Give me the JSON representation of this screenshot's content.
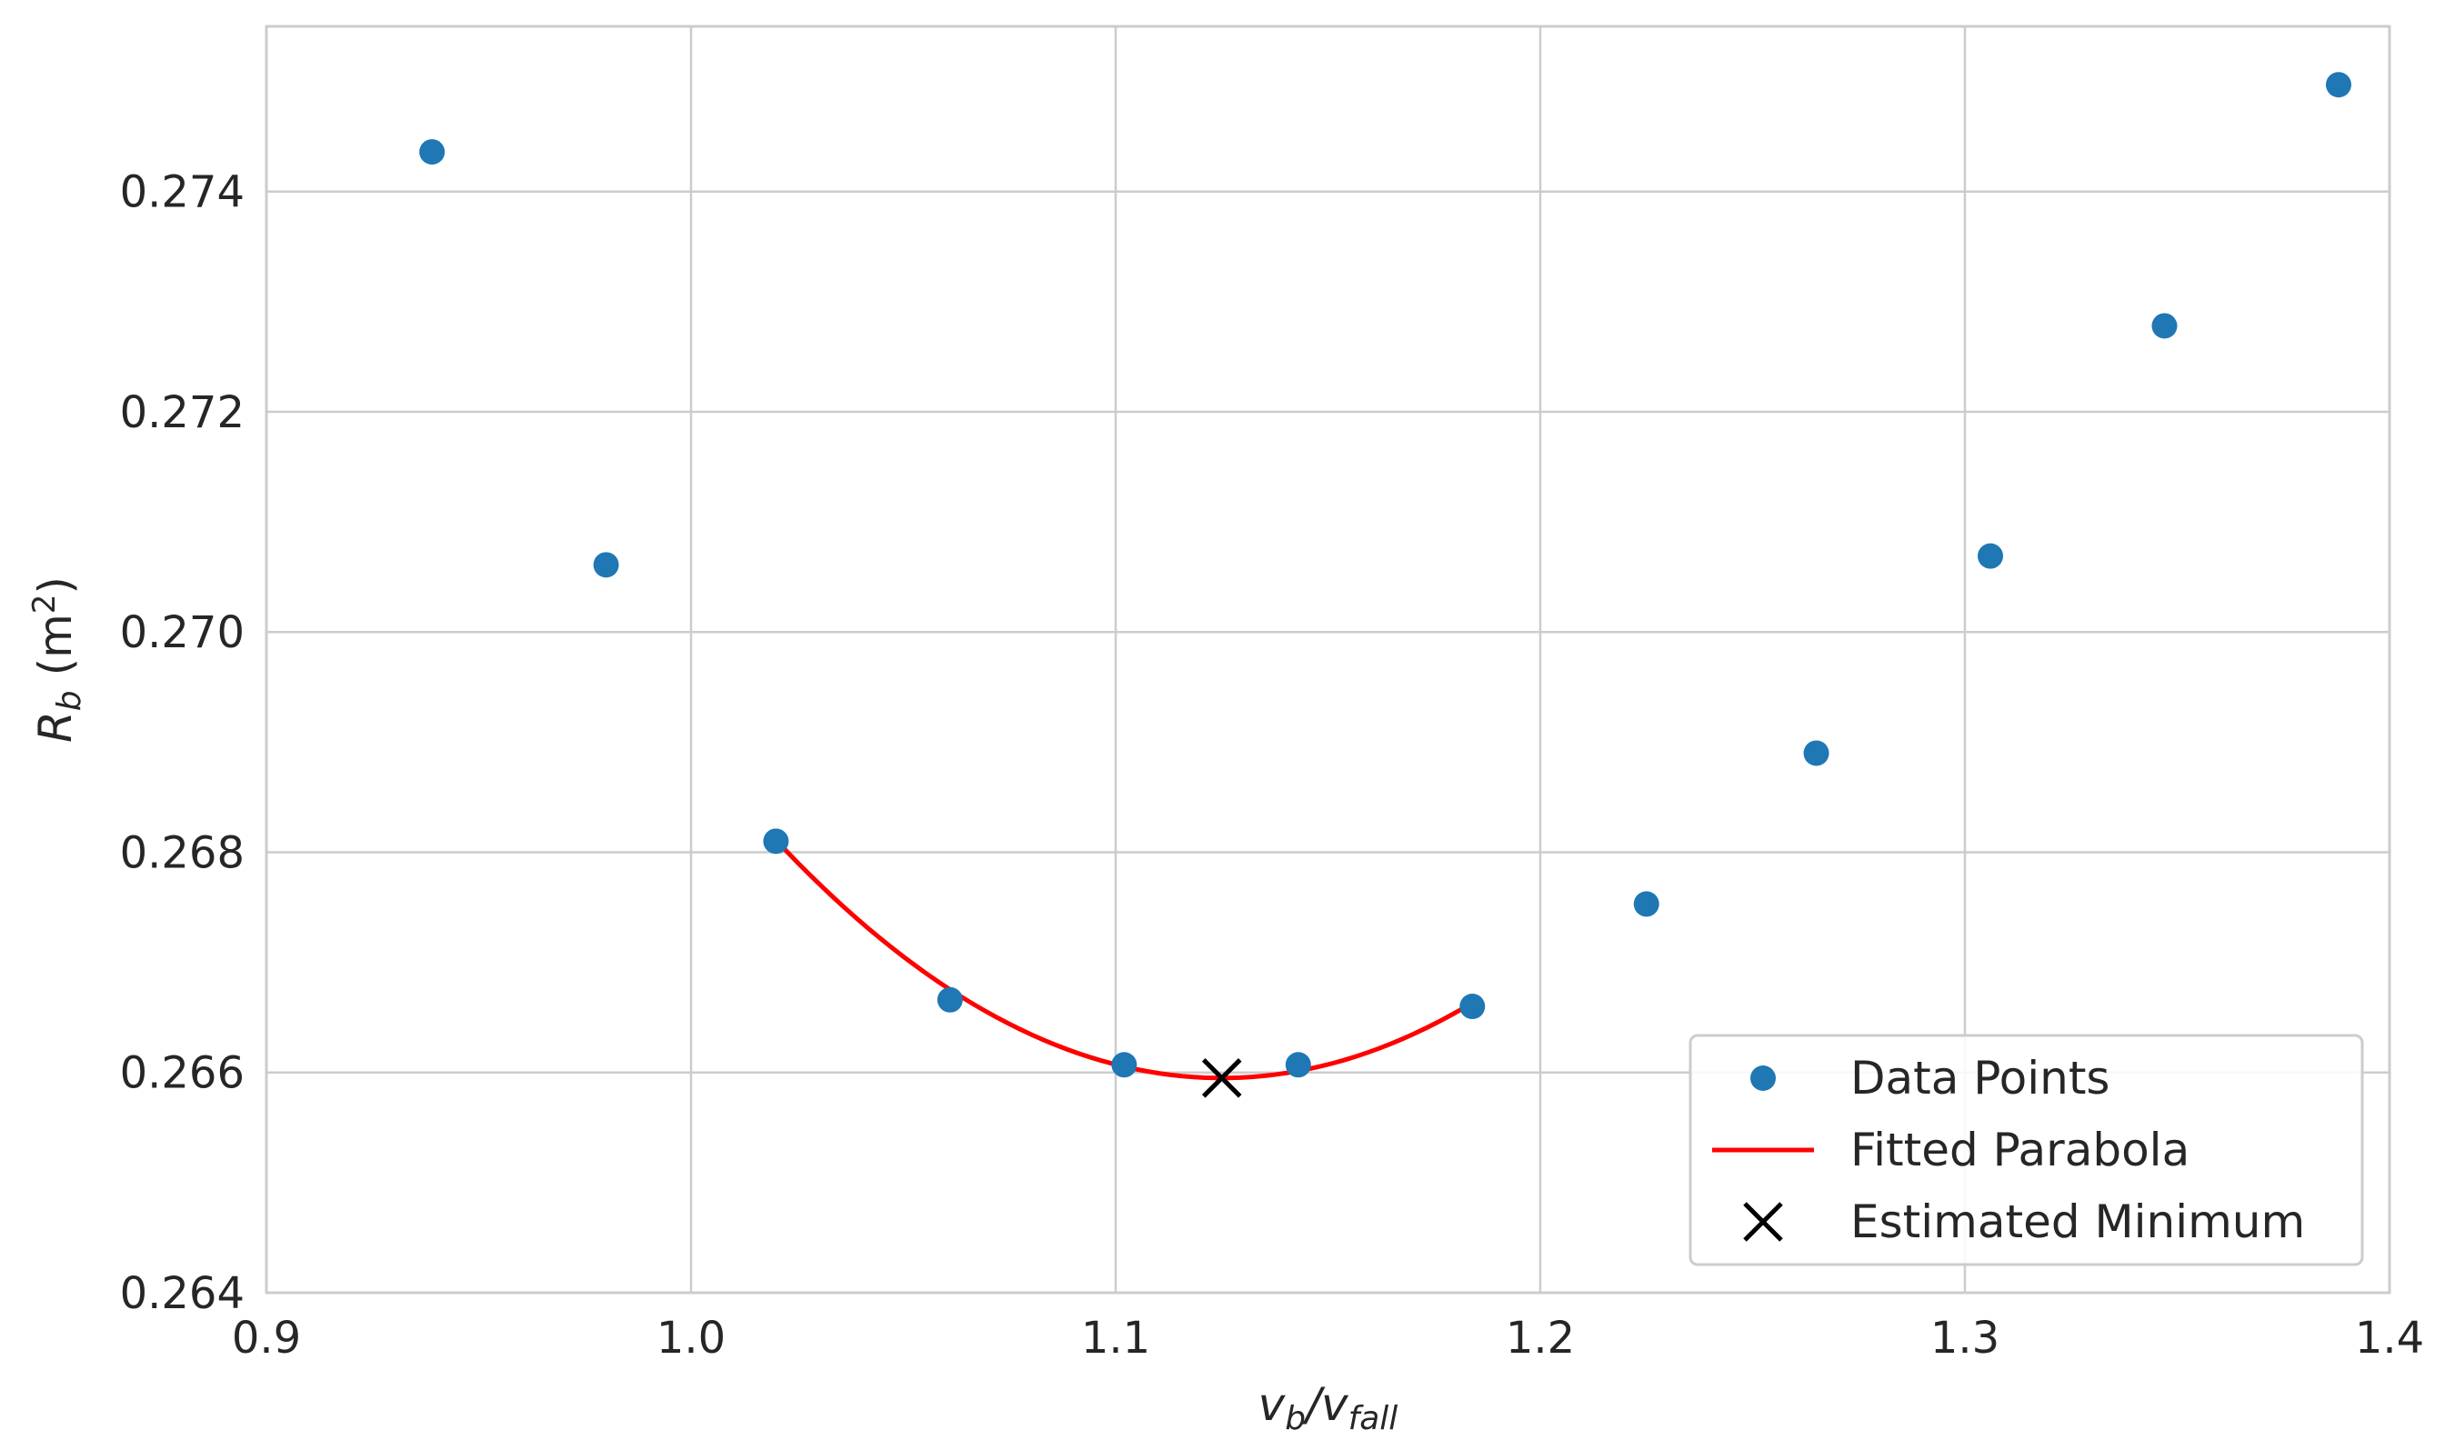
{
  "chart_data": {
    "type": "scatter",
    "xlabel": {
      "main": "v",
      "sub1": "b",
      "sep": "/v",
      "sub2": "fall"
    },
    "ylabel": {
      "main": "R",
      "sub": "b",
      "unit_pre": " (m",
      "unit_sup": "2",
      "unit_post": ")"
    },
    "xlim": [
      0.9,
      1.4
    ],
    "ylim": [
      0.264,
      0.2755
    ],
    "xticks": [
      0.9,
      1.0,
      1.1,
      1.2,
      1.3,
      1.4
    ],
    "xtick_labels": [
      "0.9",
      "1.0",
      "1.1",
      "1.2",
      "1.3",
      "1.4"
    ],
    "yticks": [
      0.264,
      0.266,
      0.268,
      0.27,
      0.272,
      0.274
    ],
    "ytick_labels": [
      "0.264",
      "0.266",
      "0.268",
      "0.270",
      "0.272",
      "0.274"
    ],
    "grid": true,
    "legend_position": "lower-right",
    "series": [
      {
        "name": "Data Points",
        "kind": "scatter",
        "color": "#1f77b4",
        "x": [
          0.939,
          0.98,
          1.02,
          1.061,
          1.102,
          1.143,
          1.184,
          1.225,
          1.265,
          1.306,
          1.347,
          1.388
        ],
        "y": [
          0.27436,
          0.27061,
          0.2681,
          0.26666,
          0.26607,
          0.26607,
          0.2666,
          0.26753,
          0.2689,
          0.27069,
          0.27278,
          0.27497
        ]
      },
      {
        "name": "Fitted Parabola",
        "kind": "line",
        "color": "#ff0000",
        "x_range": [
          1.02,
          1.184
        ],
        "vertex": [
          1.125,
          0.26595
        ],
        "curvature": 0.196
      },
      {
        "name": "Estimated Minimum",
        "kind": "marker-x",
        "color": "#000000",
        "x": [
          1.125
        ],
        "y": [
          0.26595
        ]
      }
    ]
  }
}
